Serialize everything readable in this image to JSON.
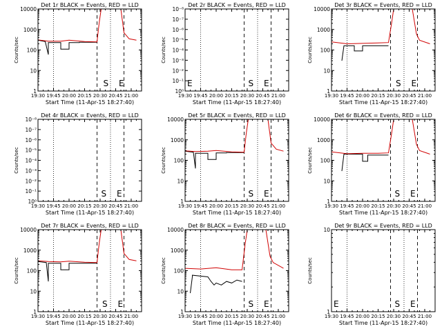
{
  "figure": {
    "xlabel": "Start Time (11-Apr-15 18:27:40)",
    "ylabel": "Counts/sec",
    "x_tick_labels": [
      "19:30",
      "19:45",
      "20:00",
      "20:15",
      "20:30",
      "20:45",
      "21:00"
    ]
  },
  "chart_data": [
    {
      "type": "line",
      "title": "Det 1r BLACK = Events, RED = LLD",
      "xlabel": "Start Time (11-Apr-15 18:27:40)",
      "ylabel": "Counts/sec",
      "ylim": [
        1,
        10000
      ],
      "y_log": true,
      "y_ticks": [
        "1",
        "10",
        "100",
        "1000",
        "10000"
      ],
      "dotted_x": [
        "19:45",
        "20:40"
      ],
      "dashed_x": [
        "20:27",
        "20:53"
      ],
      "markers": [
        {
          "text": "S",
          "x": "20:33"
        },
        {
          "text": "E",
          "x": "20:48"
        }
      ],
      "series": [
        {
          "color": "#000000",
          "x": [
            "19:30",
            "19:37",
            "19:40",
            "19:40",
            "19:52",
            "19:52",
            "20:00",
            "20:00",
            "20:10",
            "20:10",
            "20:27"
          ],
          "y": [
            300,
            260,
            60,
            230,
            230,
            110,
            110,
            230,
            230,
            240,
            240
          ]
        },
        {
          "color": "#d00000",
          "x": [
            "19:30",
            "19:40",
            "19:52",
            "20:00",
            "20:15",
            "20:27",
            "20:29",
            "20:31",
            "20:50",
            "20:53",
            "20:58",
            "21:05"
          ],
          "y": [
            310,
            270,
            270,
            300,
            260,
            250,
            2000,
            10000,
            10000,
            700,
            350,
            300
          ]
        }
      ]
    },
    {
      "type": "line",
      "title": "Det 2r BLACK = Events, RED = LLD",
      "xlabel": "Start Time (11-Apr-15 18:27:40)",
      "ylabel": "Counts/sec",
      "ylim": [
        1,
        1e-08
      ],
      "y_log": true,
      "y_ticks": [
        "10⁰",
        "10⁻¹",
        "10⁻²",
        "10⁻³",
        "10⁻⁴",
        "10⁻⁵",
        "10⁻⁶",
        "10⁻⁷",
        "10⁻⁸"
      ],
      "dotted_x": [
        "19:45",
        "20:40"
      ],
      "dashed_x": [
        "20:27",
        "20:53"
      ],
      "markers": [
        {
          "text": "E",
          "x": "19:32"
        },
        {
          "text": "S",
          "x": "20:31"
        },
        {
          "text": "E",
          "x": "20:46"
        }
      ],
      "series": []
    },
    {
      "type": "line",
      "title": "Det 3r BLACK = Events, RED = LLD",
      "xlabel": "Start Time (11-Apr-15 18:27:40)",
      "ylabel": "Counts/sec",
      "ylim": [
        1,
        10000
      ],
      "y_log": true,
      "y_ticks": [
        "1",
        "10",
        "100",
        "1000",
        "10000"
      ],
      "dotted_x": [
        "19:45",
        "20:40"
      ],
      "dashed_x": [
        "20:27",
        "20:53"
      ],
      "markers": [
        {
          "text": "S",
          "x": "20:32"
        },
        {
          "text": "E",
          "x": "20:47"
        }
      ],
      "series": [
        {
          "color": "#000000",
          "x": [
            "19:40",
            "19:42",
            "19:42",
            "19:52",
            "19:52",
            "20:00",
            "20:00",
            "20:25"
          ],
          "y": [
            30,
            160,
            160,
            160,
            90,
            90,
            160,
            160
          ]
        },
        {
          "color": "#d00000",
          "x": [
            "19:30",
            "19:45",
            "20:00",
            "20:15",
            "20:25",
            "20:28",
            "20:30",
            "20:48",
            "20:52",
            "20:55",
            "21:05"
          ],
          "y": [
            250,
            200,
            210,
            220,
            230,
            2000,
            10000,
            10000,
            600,
            300,
            200
          ]
        }
      ]
    },
    {
      "type": "line",
      "title": "Det 4r BLACK = Events, RED = LLD",
      "xlabel": "Start Time (11-Apr-15 18:27:40)",
      "ylabel": "Counts/sec",
      "ylim": [
        1,
        1e-08
      ],
      "y_log": true,
      "y_ticks": [
        "10⁰",
        "10⁻¹",
        "10⁻²",
        "10⁻³",
        "10⁻⁴",
        "10⁻⁵",
        "10⁻⁶",
        "10⁻⁷",
        "10⁻⁸"
      ],
      "dotted_x": [
        "19:45",
        "20:40"
      ],
      "dashed_x": [
        "20:27",
        "20:53"
      ],
      "markers": [
        {
          "text": "S",
          "x": "20:31"
        },
        {
          "text": "E",
          "x": "20:46"
        }
      ],
      "series": []
    },
    {
      "type": "line",
      "title": "Det 5r BLACK = Events, RED = LLD",
      "xlabel": "Start Time (11-Apr-15 18:27:40)",
      "ylabel": "Counts/sec",
      "ylim": [
        1,
        10000
      ],
      "y_log": true,
      "y_ticks": [
        "1",
        "10",
        "100",
        "1000",
        "10000"
      ],
      "dotted_x": [
        "19:45",
        "20:40"
      ],
      "dashed_x": [
        "20:27",
        "20:53"
      ],
      "markers": [
        {
          "text": "S",
          "x": "20:31"
        },
        {
          "text": "E",
          "x": "20:46"
        }
      ],
      "series": [
        {
          "color": "#000000",
          "x": [
            "19:30",
            "19:38",
            "19:40",
            "19:40",
            "19:52",
            "19:52",
            "20:00",
            "20:00",
            "20:10",
            "20:10",
            "20:27"
          ],
          "y": [
            280,
            250,
            40,
            220,
            220,
            110,
            110,
            230,
            230,
            240,
            240
          ]
        },
        {
          "color": "#d00000",
          "x": [
            "19:30",
            "19:40",
            "19:52",
            "20:00",
            "20:15",
            "20:27",
            "20:29",
            "20:31",
            "20:50",
            "20:53",
            "20:58",
            "21:05"
          ],
          "y": [
            290,
            270,
            280,
            300,
            260,
            250,
            2000,
            10000,
            10000,
            700,
            350,
            280
          ]
        }
      ]
    },
    {
      "type": "line",
      "title": "Det 6r BLACK = Events, RED = LLD",
      "xlabel": "Start Time (11-Apr-15 18:27:40)",
      "ylabel": "Counts/sec",
      "ylim": [
        1,
        10000
      ],
      "y_log": true,
      "y_ticks": [
        "1",
        "10",
        "100",
        "1000",
        "10000"
      ],
      "dotted_x": [
        "19:45",
        "20:40"
      ],
      "dashed_x": [
        "20:27",
        "20:53"
      ],
      "markers": [
        {
          "text": "S",
          "x": "20:31"
        },
        {
          "text": "E",
          "x": "20:46"
        }
      ],
      "series": [
        {
          "color": "#000000",
          "x": [
            "19:40",
            "19:42",
            "19:42",
            "20:00",
            "20:00",
            "20:05",
            "20:05",
            "20:25"
          ],
          "y": [
            30,
            200,
            200,
            200,
            90,
            90,
            180,
            180
          ]
        },
        {
          "color": "#d00000",
          "x": [
            "19:30",
            "19:45",
            "20:00",
            "20:15",
            "20:25",
            "20:28",
            "20:30",
            "20:48",
            "20:52",
            "20:55",
            "21:05"
          ],
          "y": [
            260,
            210,
            220,
            220,
            230,
            2000,
            10000,
            10000,
            600,
            300,
            200
          ]
        }
      ]
    },
    {
      "type": "line",
      "title": "Det 7r BLACK = Events, RED = LLD",
      "xlabel": "Start Time (11-Apr-15 18:27:40)",
      "ylabel": "Counts/sec",
      "ylim": [
        1,
        10000
      ],
      "y_log": true,
      "y_ticks": [
        "1",
        "10",
        "100",
        "1000",
        "10000"
      ],
      "dotted_x": [
        "19:45",
        "20:40"
      ],
      "dashed_x": [
        "20:27",
        "20:53"
      ],
      "markers": [
        {
          "text": "S",
          "x": "20:32"
        },
        {
          "text": "E",
          "x": "20:47"
        }
      ],
      "series": [
        {
          "color": "#000000",
          "x": [
            "19:30",
            "19:38",
            "19:40",
            "19:40",
            "19:52",
            "19:52",
            "20:00",
            "20:00",
            "20:10",
            "20:10",
            "20:27"
          ],
          "y": [
            280,
            250,
            30,
            230,
            230,
            110,
            110,
            230,
            230,
            230,
            230
          ]
        },
        {
          "color": "#d00000",
          "x": [
            "19:30",
            "19:40",
            "19:52",
            "20:00",
            "20:15",
            "20:27",
            "20:29",
            "20:31",
            "20:50",
            "20:53",
            "20:58",
            "21:05"
          ],
          "y": [
            300,
            280,
            270,
            290,
            260,
            250,
            2000,
            10000,
            10000,
            700,
            350,
            300
          ]
        }
      ]
    },
    {
      "type": "line",
      "title": "Det 8r BLACK = Events, RED = LLD",
      "xlabel": "Start Time (11-Apr-15 18:27:40)",
      "ylabel": "Counts/sec",
      "ylim": [
        1,
        10000
      ],
      "y_log": true,
      "y_ticks": [
        "1",
        "10",
        "100",
        "1000",
        "10000"
      ],
      "dotted_x": [
        "19:45",
        "20:40"
      ],
      "dashed_x": [
        "20:27",
        "20:53"
      ],
      "markers": [
        {
          "text": "S",
          "x": "20:31"
        },
        {
          "text": "E",
          "x": "20:46"
        }
      ],
      "series": [
        {
          "color": "#000000",
          "x": [
            "19:35",
            "19:37",
            "19:37",
            "19:52",
            "19:55",
            "19:58",
            "20:00",
            "20:05",
            "20:10",
            "20:15",
            "20:20",
            "20:25"
          ],
          "y": [
            8,
            50,
            60,
            50,
            30,
            20,
            25,
            20,
            30,
            25,
            35,
            30
          ]
        },
        {
          "color": "#d00000",
          "x": [
            "19:30",
            "19:45",
            "20:00",
            "20:15",
            "20:25",
            "20:28",
            "20:30",
            "20:48",
            "20:52",
            "20:55",
            "21:05"
          ],
          "y": [
            130,
            120,
            140,
            110,
            110,
            2000,
            10000,
            10000,
            500,
            250,
            130
          ]
        }
      ]
    },
    {
      "type": "line",
      "title": "Det 9r BLACK = Events, RED = LLD",
      "xlabel": "Start Time (11-Apr-15 18:27:40)",
      "ylabel": "Counts/sec",
      "ylim": [
        1,
        10
      ],
      "y_log": true,
      "y_ticks": [
        "1",
        "10"
      ],
      "dotted_x": [
        "19:45",
        "20:40"
      ],
      "dashed_x": [
        "20:27",
        "20:53"
      ],
      "markers": [
        {
          "text": "E",
          "x": "19:32"
        },
        {
          "text": "S",
          "x": "20:31"
        },
        {
          "text": "E",
          "x": "20:46"
        }
      ],
      "series": []
    }
  ]
}
